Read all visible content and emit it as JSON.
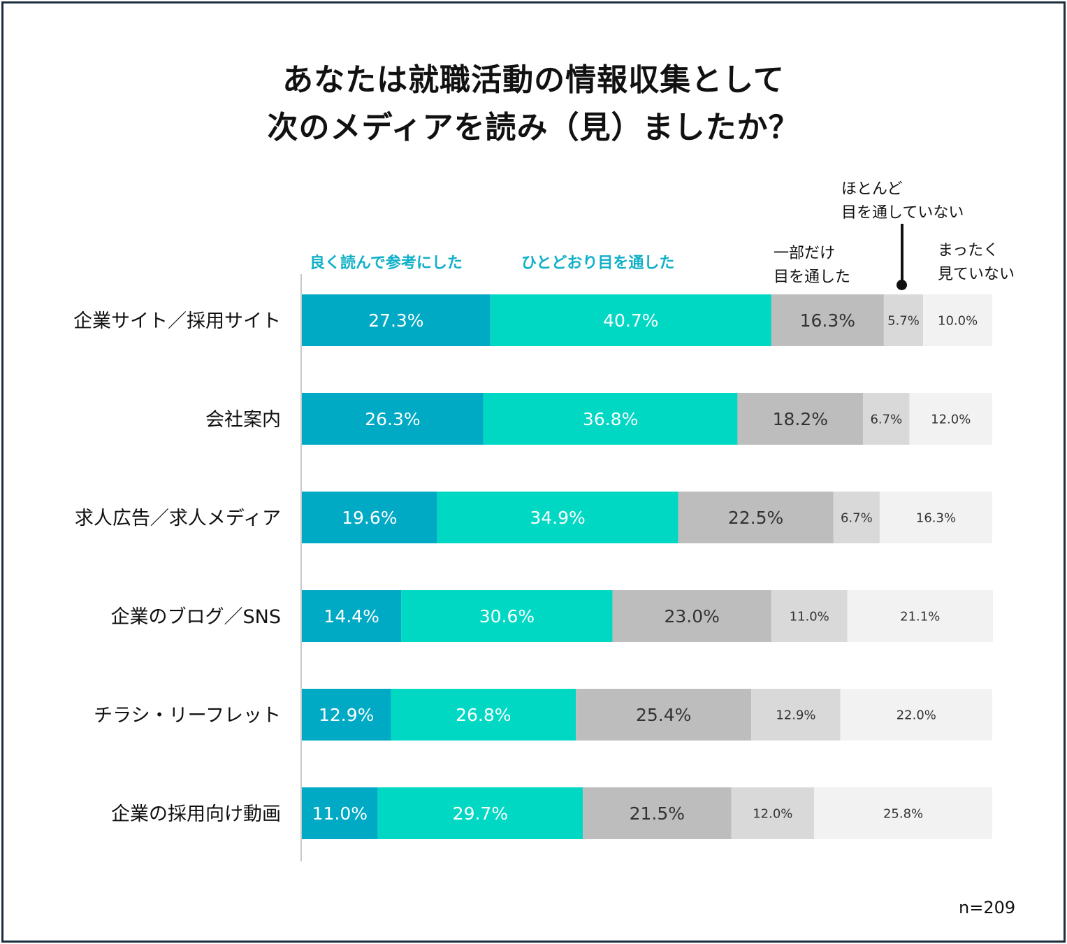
{
  "title_line1": "あなたは就職活動の情報収集として",
  "title_line2": "次のメディアを読み（見）ましたか？",
  "legend": {
    "s1": "良く読んで参考にした",
    "s2": "ひとどおり目を通した",
    "s3_line1": "一部だけ",
    "s3_line2": "目を通した",
    "s4_line1": "ほとんど",
    "s4_line2": "目を通していない",
    "s5_line1": "まったく",
    "s5_line2": "見ていない"
  },
  "note": "n=209",
  "colors": {
    "s1": "#00a9c4",
    "s2": "#00d8c4",
    "s3": "#bdbdbd",
    "s4": "#d9d9d9",
    "s5": "#f2f2f2",
    "legend_text": "#10b0c8",
    "frame": "#1f2d3d"
  },
  "chart_data": {
    "type": "bar",
    "orientation": "horizontal",
    "stacked": true,
    "xlim": [
      0,
      100
    ],
    "categories": [
      "企業サイト／採用サイト",
      "会社案内",
      "求人広告／求人メディア",
      "企業のブログ／SNS",
      "チラシ・リーフレット",
      "企業の採用向け動画"
    ],
    "series": [
      {
        "name": "良く読んで参考にした",
        "values": [
          27.3,
          26.3,
          19.6,
          14.4,
          12.9,
          11.0
        ],
        "labels": [
          "27.3%",
          "26.3%",
          "19.6%",
          "14.4%",
          "12.9%",
          "11.0%"
        ]
      },
      {
        "name": "ひとどおり目を通した",
        "values": [
          40.7,
          36.8,
          34.9,
          30.6,
          26.8,
          29.7
        ],
        "labels": [
          "40.7%",
          "36.8%",
          "34.9%",
          "30.6%",
          "26.8%",
          "29.7%"
        ]
      },
      {
        "name": "一部だけ目を通した",
        "values": [
          16.3,
          18.2,
          22.5,
          23.0,
          25.4,
          21.5
        ],
        "labels": [
          "16.3%",
          "18.2%",
          "22.5%",
          "23.0%",
          "25.4%",
          "21.5%"
        ]
      },
      {
        "name": "ほとんど目を通していない",
        "values": [
          5.7,
          6.7,
          6.7,
          11.0,
          12.9,
          12.0
        ],
        "labels": [
          "5.7%",
          "6.7%",
          "6.7%",
          "11.0%",
          "12.9%",
          "12.0%"
        ]
      },
      {
        "name": "まったく見ていない",
        "values": [
          10.0,
          12.0,
          16.3,
          21.1,
          22.0,
          25.8
        ],
        "labels": [
          "10.0%",
          "12.0%",
          "16.3%",
          "21.1%",
          "22.0%",
          "25.8%"
        ]
      }
    ]
  }
}
